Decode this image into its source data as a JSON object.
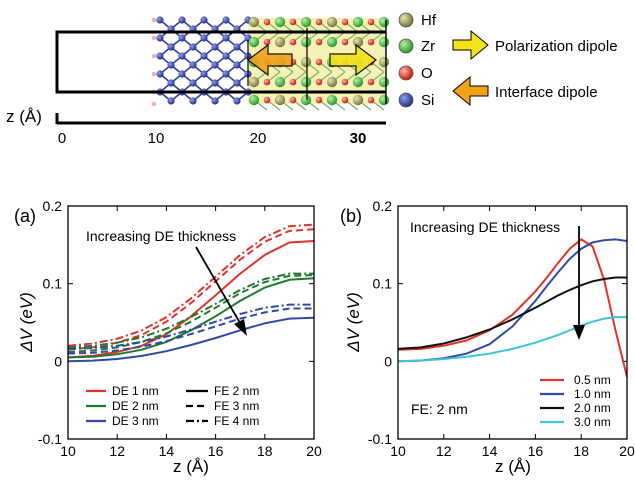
{
  "header": {
    "z_axis_label": "z (Å)",
    "z_ticks": [
      "0",
      "10",
      "20",
      "30"
    ],
    "legend": [
      {
        "symbol": "Hf",
        "color": "#8b8a45",
        "name": "hf-legend"
      },
      {
        "symbol": "Zr",
        "color": "#3fae3a",
        "name": "zr-legend"
      },
      {
        "symbol": "O",
        "color": "#e2322a",
        "name": "o-legend"
      },
      {
        "symbol": "Si",
        "color": "#2e3f9e",
        "name": "si-legend"
      }
    ],
    "arrows": {
      "polarization": {
        "label": "Polarization dipole",
        "color": "#f2e21a"
      },
      "interface": {
        "label": "Interface dipole",
        "color": "#f0a21a"
      }
    }
  },
  "chart_data": [
    {
      "type": "line",
      "panel_label": "(a)",
      "xlabel": "z (Å)",
      "ylabel": "ΔV (eV)",
      "xlim": [
        10,
        20
      ],
      "ylim": [
        -0.1,
        0.2
      ],
      "x_ticks": [
        "10",
        "12",
        "14",
        "16",
        "18",
        "20"
      ],
      "y_ticks": [
        "-0.1",
        "0",
        "0.1",
        "0.2"
      ],
      "annotation": "Increasing DE thickness",
      "legend": {
        "colors": [
          {
            "label": "DE 1 nm",
            "color": "#e2322a"
          },
          {
            "label": "DE 2 nm",
            "color": "#1f7a2e"
          },
          {
            "label": "DE 3 nm",
            "color": "#3348a8"
          }
        ],
        "styles": [
          {
            "label": "FE 2 nm",
            "dash": "solid"
          },
          {
            "label": "FE 3 nm",
            "dash": "dashed"
          },
          {
            "label": "FE 4 nm",
            "dash": "dashdot"
          }
        ]
      },
      "x": [
        10,
        11,
        12,
        13,
        14,
        15,
        16,
        17,
        18,
        19,
        20
      ],
      "series": [
        {
          "color_group": "DE 1 nm",
          "style": "FE 2 nm",
          "color": "#e2322a",
          "dash": "solid",
          "values": [
            0.005,
            0.007,
            0.012,
            0.02,
            0.035,
            0.058,
            0.085,
            0.113,
            0.137,
            0.153,
            0.155
          ]
        },
        {
          "color_group": "DE 1 nm",
          "style": "FE 3 nm",
          "color": "#e2322a",
          "dash": "dashed",
          "values": [
            0.015,
            0.018,
            0.024,
            0.034,
            0.051,
            0.075,
            0.103,
            0.131,
            0.154,
            0.168,
            0.17
          ]
        },
        {
          "color_group": "DE 1 nm",
          "style": "FE 4 nm",
          "color": "#e2322a",
          "dash": "dashdot",
          "values": [
            0.02,
            0.023,
            0.029,
            0.04,
            0.057,
            0.081,
            0.109,
            0.137,
            0.16,
            0.174,
            0.176
          ]
        },
        {
          "color_group": "DE 2 nm",
          "style": "FE 2 nm",
          "color": "#1f7a2e",
          "dash": "solid",
          "values": [
            0.005,
            0.006,
            0.009,
            0.015,
            0.025,
            0.04,
            0.058,
            0.078,
            0.095,
            0.105,
            0.107
          ]
        },
        {
          "color_group": "DE 2 nm",
          "style": "FE 3 nm",
          "color": "#1f7a2e",
          "dash": "dashed",
          "values": [
            0.012,
            0.014,
            0.018,
            0.025,
            0.036,
            0.051,
            0.069,
            0.088,
            0.102,
            0.11,
            0.111
          ]
        },
        {
          "color_group": "DE 2 nm",
          "style": "FE 4 nm",
          "color": "#1f7a2e",
          "dash": "dashdot",
          "values": [
            0.018,
            0.02,
            0.024,
            0.031,
            0.042,
            0.057,
            0.074,
            0.092,
            0.106,
            0.113,
            0.113
          ]
        },
        {
          "color_group": "DE 3 nm",
          "style": "FE 2 nm",
          "color": "#3348a8",
          "dash": "solid",
          "values": [
            0.0,
            0.001,
            0.003,
            0.007,
            0.013,
            0.021,
            0.03,
            0.04,
            0.049,
            0.055,
            0.056
          ]
        },
        {
          "color_group": "DE 3 nm",
          "style": "FE 3 nm",
          "color": "#3348a8",
          "dash": "dashed",
          "values": [
            0.01,
            0.011,
            0.014,
            0.019,
            0.026,
            0.035,
            0.045,
            0.055,
            0.063,
            0.068,
            0.068
          ]
        },
        {
          "color_group": "DE 3 nm",
          "style": "FE 4 nm",
          "color": "#3348a8",
          "dash": "dashdot",
          "values": [
            0.016,
            0.017,
            0.02,
            0.025,
            0.032,
            0.041,
            0.051,
            0.061,
            0.069,
            0.073,
            0.073
          ]
        }
      ]
    },
    {
      "type": "line",
      "panel_label": "(b)",
      "xlabel": "z (Å)",
      "ylabel": "ΔV (eV)",
      "xlim": [
        10,
        20
      ],
      "ylim": [
        -0.1,
        0.2
      ],
      "x_ticks": [
        "10",
        "12",
        "14",
        "16",
        "18",
        "20"
      ],
      "y_ticks": [
        "-0.1",
        "0",
        "0.1",
        "0.2"
      ],
      "annotation": "Increasing DE thickness",
      "note": "FE: 2 nm",
      "x": [
        10,
        11,
        12,
        13,
        14,
        15,
        16,
        16.5,
        17,
        17.5,
        18,
        18.5,
        19,
        19.5,
        20
      ],
      "series": [
        {
          "name": "0.5 nm",
          "color": "#e2322a",
          "values": [
            0.015,
            0.016,
            0.02,
            0.027,
            0.04,
            0.06,
            0.09,
            0.108,
            0.127,
            0.145,
            0.157,
            0.148,
            0.105,
            0.04,
            -0.02
          ]
        },
        {
          "name": "1.0 nm",
          "color": "#3348a8",
          "values": [
            0.0,
            0.001,
            0.004,
            0.01,
            0.022,
            0.045,
            0.078,
            0.097,
            0.115,
            0.132,
            0.145,
            0.153,
            0.156,
            0.157,
            0.155
          ]
        },
        {
          "name": "2.0 nm",
          "color": "#111111",
          "values": [
            0.016,
            0.018,
            0.023,
            0.031,
            0.041,
            0.054,
            0.069,
            0.077,
            0.085,
            0.092,
            0.098,
            0.103,
            0.106,
            0.108,
            0.108
          ]
        },
        {
          "name": "3.0 nm",
          "color": "#3fc4d4",
          "values": [
            0.0,
            0.001,
            0.003,
            0.006,
            0.01,
            0.016,
            0.024,
            0.029,
            0.034,
            0.04,
            0.046,
            0.051,
            0.055,
            0.057,
            0.057
          ]
        }
      ]
    }
  ]
}
